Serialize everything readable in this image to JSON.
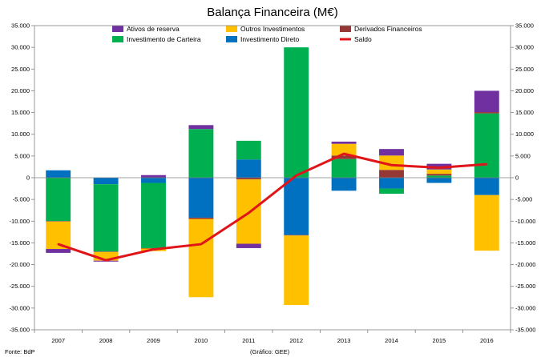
{
  "chart_data": {
    "type": "bar",
    "stacked": true,
    "title": "Balança Financeira (M€)",
    "categories": [
      "2007",
      "2008",
      "2009",
      "2010",
      "2011",
      "2012",
      "2013",
      "2014",
      "2015",
      "2016"
    ],
    "ylim": [
      -35000,
      35000
    ],
    "y_ticks": [
      -35000,
      -30000,
      -25000,
      -20000,
      -15000,
      -10000,
      -5000,
      0,
      5000,
      10000,
      15000,
      20000,
      25000,
      30000,
      35000
    ],
    "y_tick_labels": [
      "-35.000",
      "-30.000",
      "-25.000",
      "-20.000",
      "-15.000",
      "-10.000",
      "-5.000",
      "0",
      "5.000",
      "10.000",
      "15.000",
      "20.000",
      "25.000",
      "30.000",
      "35.000"
    ],
    "series": [
      {
        "name": "Investimento Direto",
        "color": "#0070C0",
        "values": [
          1700,
          -1500,
          -1200,
          -9200,
          4200,
          -13200,
          -3000,
          -2500,
          -1200,
          -4000
        ]
      },
      {
        "name": "Investimento de Carteira",
        "color": "#00B050",
        "values": [
          -10000,
          -15500,
          -15000,
          11200,
          4300,
          30000,
          4300,
          -1200,
          500,
          14800
        ]
      },
      {
        "name": "Derivados Financeiros",
        "color": "#953735",
        "values": [
          -100,
          -100,
          -100,
          -300,
          -400,
          -100,
          800,
          1800,
          400,
          300
        ]
      },
      {
        "name": "Outros Investimentos",
        "color": "#FFC000",
        "values": [
          -6300,
          -2000,
          -600,
          -18000,
          -14800,
          -16000,
          2700,
          3300,
          1000,
          -12800
        ]
      },
      {
        "name": "Ativos de reserva",
        "color": "#7030A0",
        "values": [
          -900,
          -200,
          600,
          900,
          -1000,
          0,
          500,
          1500,
          1300,
          4900
        ]
      }
    ],
    "line": {
      "name": "Saldo",
      "color": "#E0151A",
      "values": [
        -15300,
        -19000,
        -16500,
        -15300,
        -8100,
        500,
        5500,
        2900,
        2300,
        3100
      ]
    },
    "legend": [
      "Ativos de reserva",
      "Outros Investimentos",
      "Derivados Financeiros",
      "Investimento de Carteira",
      "Investimento Direto",
      "Saldo"
    ],
    "legend_position": "top"
  },
  "footer": {
    "source": "Fonte: BdP",
    "graphic": "(Gráfico: GEE)"
  }
}
